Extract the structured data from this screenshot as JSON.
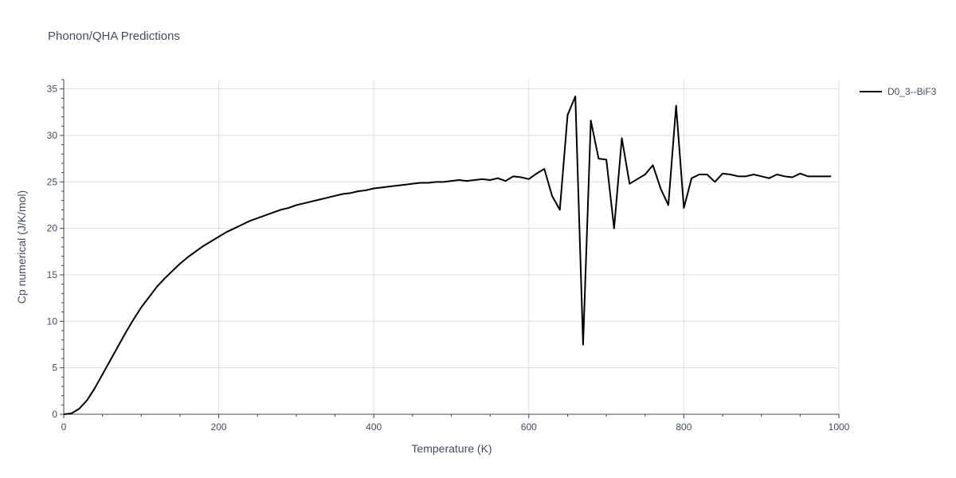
{
  "chart_data": {
    "type": "line",
    "title": "Phonon/QHA Predictions",
    "xlabel": "Temperature (K)",
    "ylabel": "Cp numerical (J/K/mol)",
    "xlim": [
      0,
      1000
    ],
    "ylim": [
      0,
      36
    ],
    "xticks": [
      0,
      200,
      400,
      600,
      800,
      1000
    ],
    "yticks": [
      0,
      5,
      10,
      15,
      20,
      25,
      30,
      35
    ],
    "grid": true,
    "legend_position": "top-right",
    "series": [
      {
        "name": "D0_3--BiF3",
        "color": "#000000",
        "x": [
          0,
          10,
          20,
          30,
          40,
          50,
          60,
          70,
          80,
          90,
          100,
          110,
          120,
          130,
          140,
          150,
          160,
          170,
          180,
          190,
          200,
          210,
          220,
          230,
          240,
          250,
          260,
          270,
          280,
          290,
          300,
          310,
          320,
          330,
          340,
          350,
          360,
          370,
          380,
          390,
          400,
          410,
          420,
          430,
          440,
          450,
          460,
          470,
          480,
          490,
          500,
          510,
          520,
          530,
          540,
          550,
          560,
          570,
          580,
          590,
          600,
          610,
          620,
          630,
          640,
          650,
          660,
          670,
          680,
          690,
          700,
          710,
          720,
          730,
          740,
          750,
          760,
          770,
          780,
          790,
          800,
          810,
          820,
          830,
          840,
          850,
          860,
          870,
          880,
          890,
          900,
          910,
          920,
          930,
          940,
          950,
          960,
          970,
          980,
          990
        ],
        "y": [
          0,
          0.1,
          0.6,
          1.5,
          2.8,
          4.3,
          5.8,
          7.3,
          8.8,
          10.2,
          11.5,
          12.6,
          13.7,
          14.6,
          15.4,
          16.2,
          16.9,
          17.5,
          18.1,
          18.6,
          19.1,
          19.6,
          20.0,
          20.4,
          20.8,
          21.1,
          21.4,
          21.7,
          22.0,
          22.2,
          22.5,
          22.7,
          22.9,
          23.1,
          23.3,
          23.5,
          23.7,
          23.8,
          24.0,
          24.1,
          24.3,
          24.4,
          24.5,
          24.6,
          24.7,
          24.8,
          24.9,
          24.9,
          25.0,
          25.0,
          25.1,
          25.2,
          25.1,
          25.2,
          25.3,
          25.2,
          25.4,
          25.1,
          25.6,
          25.5,
          25.3,
          25.9,
          26.4,
          23.5,
          22.0,
          32.2,
          34.2,
          7.5,
          31.6,
          27.5,
          27.4,
          20.0,
          29.7,
          24.8,
          25.3,
          25.8,
          26.8,
          24.3,
          22.5,
          33.2,
          22.2,
          25.4,
          25.8,
          25.8,
          25.0,
          25.9,
          25.8,
          25.6,
          25.6,
          25.8,
          25.6,
          25.4,
          25.8,
          25.6,
          25.5,
          25.9,
          25.6,
          25.6,
          25.6,
          25.6
        ]
      }
    ]
  }
}
